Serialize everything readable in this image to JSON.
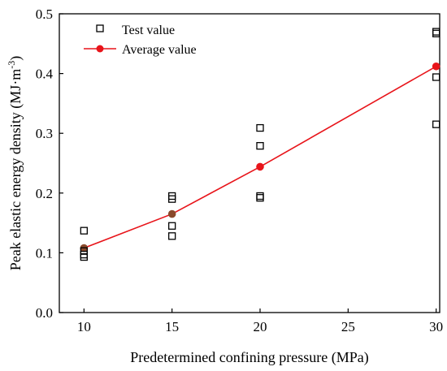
{
  "chart_data": {
    "type": "scatter",
    "xlabel": "Predetermined confining pressure (MPa)",
    "ylabel_main": "Peak elastic energy density (MJ·m",
    "ylabel_sup": "-3",
    "ylabel_end": ")",
    "xlim": [
      8.6,
      30.2
    ],
    "ylim": [
      0,
      0.5
    ],
    "x_ticks": [
      10,
      15,
      20,
      25,
      30
    ],
    "y_ticks": [
      0.0,
      0.1,
      0.2,
      0.3,
      0.4,
      0.5
    ],
    "y_tick_labels": [
      "0.0",
      "0.1",
      "0.2",
      "0.3",
      "0.4",
      "0.5"
    ],
    "legend_position": "top-left",
    "test_series": {
      "name": "Test value",
      "marker": "open-square",
      "color": "#000000",
      "points": [
        {
          "x": 10,
          "y": 0.137
        },
        {
          "x": 10,
          "y": 0.103
        },
        {
          "x": 10,
          "y": 0.097
        },
        {
          "x": 10,
          "y": 0.093
        },
        {
          "x": 15,
          "y": 0.195
        },
        {
          "x": 15,
          "y": 0.19
        },
        {
          "x": 15,
          "y": 0.145
        },
        {
          "x": 15,
          "y": 0.128
        },
        {
          "x": 20,
          "y": 0.309
        },
        {
          "x": 20,
          "y": 0.279
        },
        {
          "x": 20,
          "y": 0.195
        },
        {
          "x": 20,
          "y": 0.192
        },
        {
          "x": 30,
          "y": 0.47
        },
        {
          "x": 30,
          "y": 0.467
        },
        {
          "x": 30,
          "y": 0.394
        },
        {
          "x": 30,
          "y": 0.315
        }
      ]
    },
    "average_series": {
      "name": "Average value",
      "marker": "filled-circle-line",
      "color": "#e8141a",
      "overlap_color": "#8a4a2c",
      "points": [
        {
          "x": 10,
          "y": 0.108
        },
        {
          "x": 15,
          "y": 0.165
        },
        {
          "x": 20,
          "y": 0.244
        },
        {
          "x": 30,
          "y": 0.412
        }
      ]
    }
  }
}
